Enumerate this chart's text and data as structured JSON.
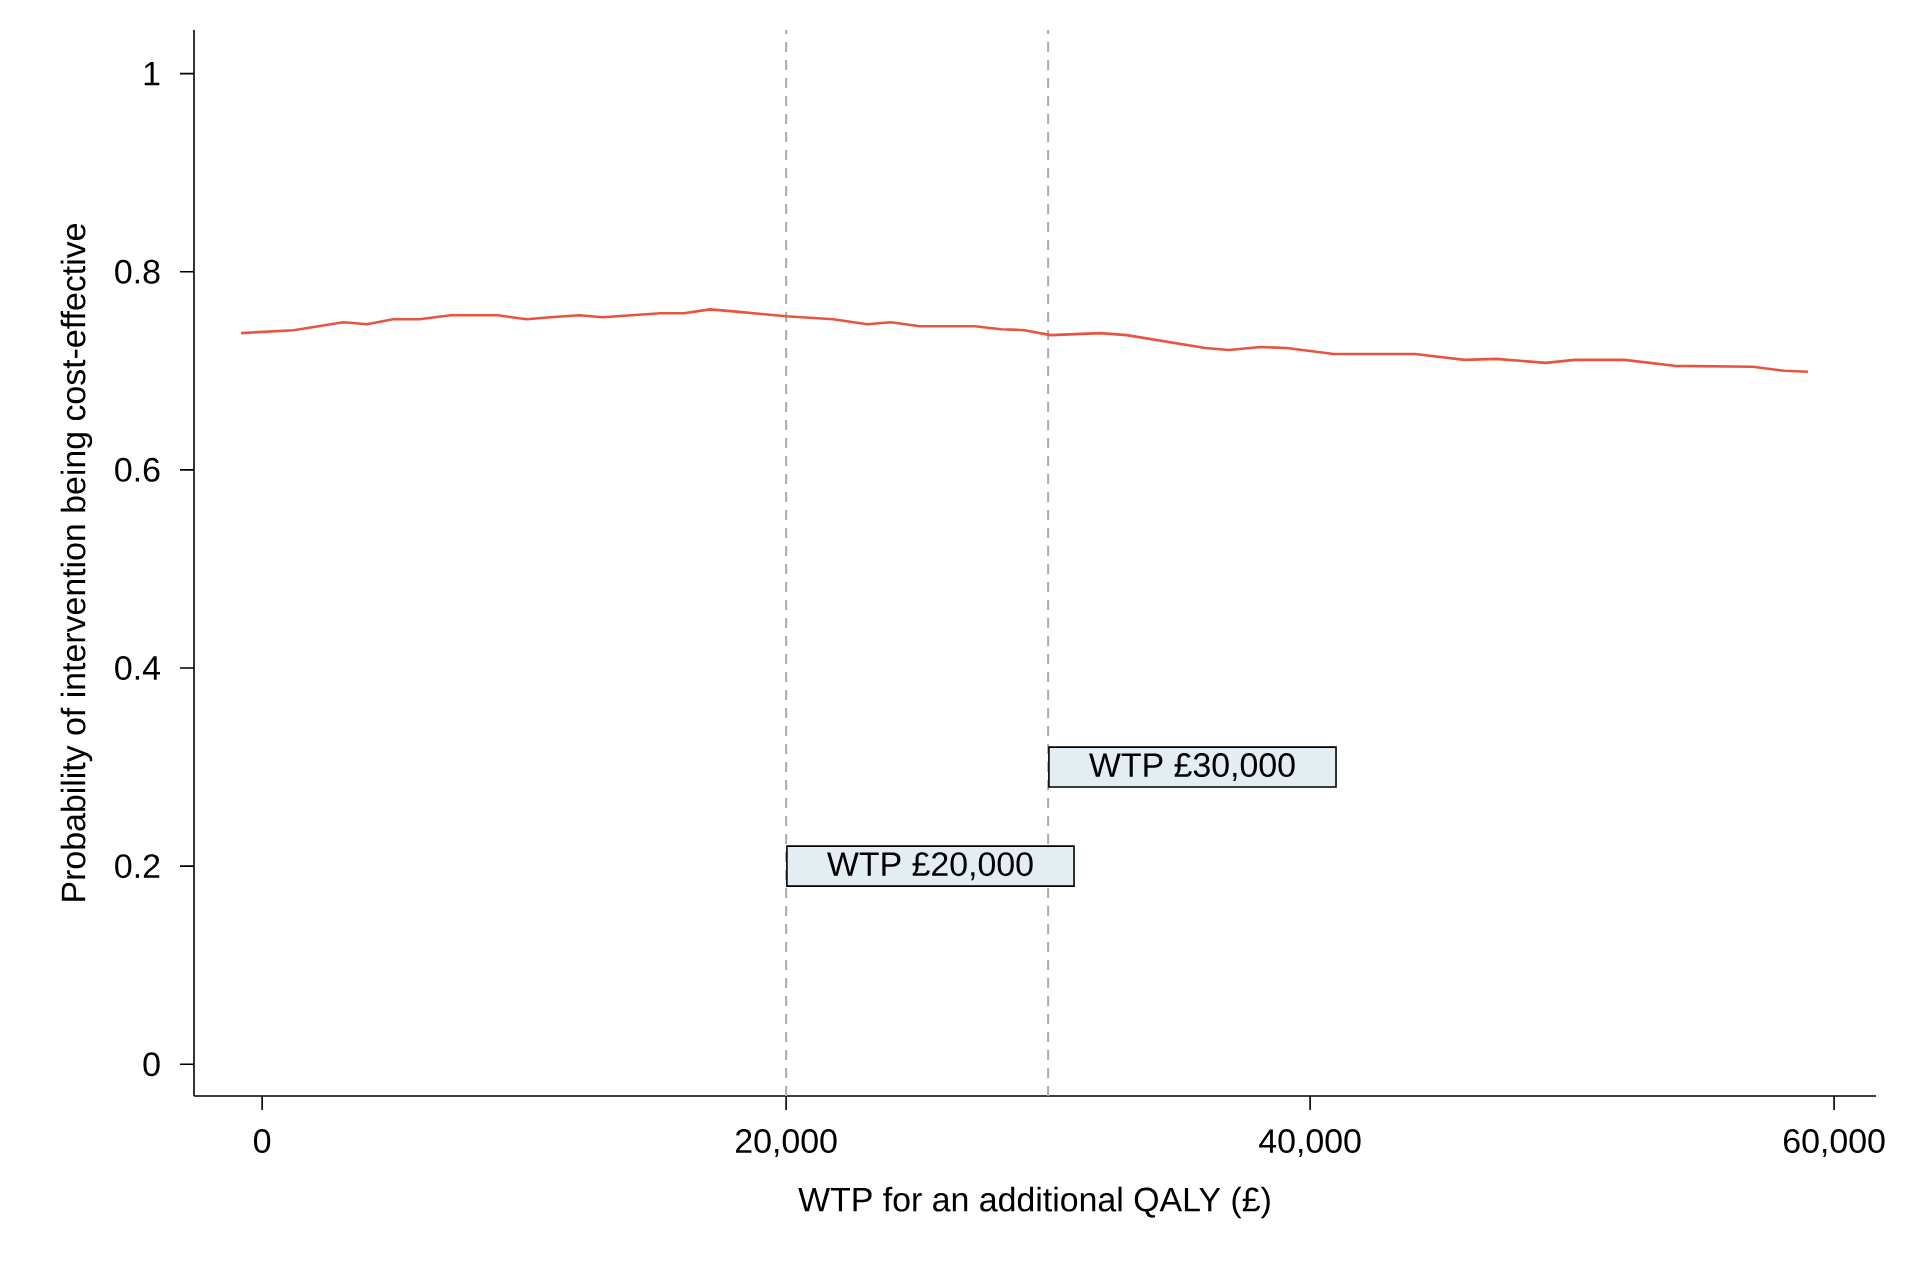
{
  "chart_data": {
    "type": "line",
    "xlabel": "WTP for an additional QALY (£)",
    "ylabel": "Probability of intervention being cost-effective",
    "xlim": [
      -2600,
      61600
    ],
    "ylim": [
      -0.032,
      1.044
    ],
    "xticks": [
      {
        "value": 0,
        "label": "0"
      },
      {
        "value": 20000,
        "label": "20,000"
      },
      {
        "value": 40000,
        "label": "40,000"
      },
      {
        "value": 60000,
        "label": "60,000"
      }
    ],
    "yticks": [
      {
        "value": 0,
        "label": "0"
      },
      {
        "value": 0.2,
        "label": "0.2"
      },
      {
        "value": 0.4,
        "label": "0.4"
      },
      {
        "value": 0.6,
        "label": "0.6"
      },
      {
        "value": 0.8,
        "label": "0.8"
      },
      {
        "value": 1,
        "label": "1"
      }
    ],
    "grid": false,
    "marker": "none",
    "line_style": "solid",
    "x": [
      -800,
      1200,
      3100,
      4000,
      5000,
      6000,
      7200,
      9000,
      10100,
      11000,
      12100,
      13000,
      15200,
      16100,
      17100,
      18000,
      20000,
      21800,
      23100,
      24000,
      25100,
      27200,
      28200,
      29100,
      30100,
      32000,
      33000,
      36000,
      36900,
      38100,
      39100,
      40900,
      44000,
      45900,
      47100,
      49000,
      50100,
      52000,
      53900,
      56900,
      58100,
      59000
    ],
    "series": [
      {
        "color": "#e8553f",
        "values": [
          0.738,
          0.741,
          0.749,
          0.747,
          0.752,
          0.752,
          0.756,
          0.756,
          0.752,
          0.754,
          0.756,
          0.754,
          0.758,
          0.758,
          0.762,
          0.76,
          0.755,
          0.752,
          0.747,
          0.749,
          0.745,
          0.745,
          0.742,
          0.741,
          0.736,
          0.738,
          0.736,
          0.723,
          0.721,
          0.724,
          0.723,
          0.717,
          0.717,
          0.711,
          0.712,
          0.708,
          0.711,
          0.711,
          0.705,
          0.704,
          0.7,
          0.699
        ]
      }
    ],
    "ref_lines": [
      {
        "axis": "x",
        "value": 20000,
        "color": "#a8acaf",
        "line_style": "dashed"
      },
      {
        "axis": "x",
        "value": 30000,
        "color": "#a8acaf",
        "line_style": "dashed"
      }
    ],
    "annotations": [
      {
        "text": "WTP £20,000",
        "x": 20000,
        "y": 0.2
      },
      {
        "text": "WTP £30,000",
        "x": 30000,
        "y": 0.3
      }
    ]
  }
}
